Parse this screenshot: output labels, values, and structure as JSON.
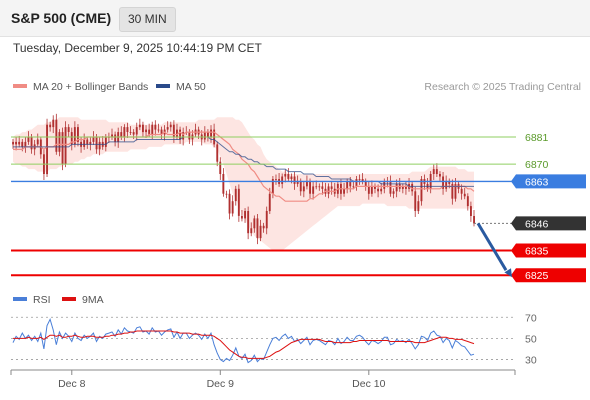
{
  "header": {
    "instrument": "S&P 500 (CME)",
    "timeframe": "30 MIN",
    "timestamp": "Tuesday, December 9, 2025 10:44:19 PM CET"
  },
  "colors": {
    "ma20": "#f08c84",
    "ma50": "#2a4a8a",
    "bollinger_fill": "#fcdcd8",
    "candle": "#b03030",
    "support": "#ee0000",
    "pivot": "#3a7de0",
    "resistance": "#8fcf60",
    "last_price": "#333333",
    "arrow": "#2a5aa0",
    "rsi": "#4a7fd8",
    "rsi_ma": "#dd1111"
  },
  "chart_data": [
    {
      "type": "candlestick",
      "legend": [
        "MA 20 + Bollinger Bands",
        "MA 50"
      ],
      "legend_placement": "top-left",
      "credit": "Research © 2025 Trading Central",
      "x_ticks": [
        "Dec 8",
        "Dec 9",
        "Dec 10"
      ],
      "ylim": [
        6819,
        6896
      ],
      "levels": [
        {
          "value": 6881,
          "label": "6881",
          "kind": "resistance"
        },
        {
          "value": 6870,
          "label": "6870",
          "kind": "resistance"
        },
        {
          "value": 6863,
          "label": "6863",
          "kind": "pivot"
        },
        {
          "value": 6846,
          "label": "6846",
          "kind": "last"
        },
        {
          "value": 6835,
          "label": "6835",
          "kind": "support"
        },
        {
          "value": 6825,
          "label": "6825",
          "kind": "support"
        }
      ],
      "close": [
        6879,
        6878,
        6879,
        6877,
        6879,
        6881,
        6876,
        6878,
        6880,
        6874,
        6866,
        6886,
        6885,
        6888,
        6875,
        6883,
        6870,
        6885,
        6883,
        6878,
        6885,
        6879,
        6877,
        6880,
        6878,
        6879,
        6881,
        6876,
        6879,
        6877,
        6881,
        6881,
        6882,
        6879,
        6883,
        6881,
        6885,
        6883,
        6883,
        6882,
        6885,
        6886,
        6883,
        6884,
        6882,
        6886,
        6884,
        6884,
        6882,
        6884,
        6885,
        6886,
        6881,
        6884,
        6880,
        6883,
        6883,
        6880,
        6882,
        6884,
        6882,
        6880,
        6883,
        6881,
        6884,
        6878,
        6871,
        6866,
        6858,
        6858,
        6850,
        6855,
        6860,
        6849,
        6848,
        6851,
        6842,
        6844,
        6848,
        6840,
        6845,
        6844,
        6851,
        6858,
        6864,
        6864,
        6862,
        6865,
        6866,
        6864,
        6865,
        6862,
        6863,
        6859,
        6861,
        6863,
        6858,
        6861,
        6861,
        6861,
        6860,
        6858,
        6861,
        6860,
        6858,
        6862,
        6858,
        6860,
        6863,
        6861,
        6861,
        6864,
        6864,
        6863,
        6861,
        6858,
        6861,
        6860,
        6859,
        6860,
        6863,
        6863,
        6858,
        6859,
        6862,
        6860,
        6861,
        6860,
        6862,
        6859,
        6851,
        6855,
        6864,
        6862,
        6860,
        6866,
        6868,
        6866,
        6865,
        6860,
        6863,
        6862,
        6856,
        6862,
        6860,
        6858,
        6857,
        6853,
        6849,
        6846
      ],
      "ma20": [
        6876,
        6876,
        6876,
        6876,
        6877,
        6877,
        6877,
        6877,
        6877,
        6877,
        6876,
        6877,
        6877,
        6877,
        6878,
        6878,
        6878,
        6878,
        6878,
        6879,
        6879,
        6880,
        6880,
        6880,
        6881,
        6881,
        6881,
        6881,
        6881,
        6881,
        6881,
        6881,
        6881,
        6881,
        6881,
        6881,
        6881,
        6881,
        6881,
        6881,
        6881,
        6881,
        6881,
        6881,
        6882,
        6882,
        6882,
        6882,
        6882,
        6883,
        6882,
        6882,
        6882,
        6882,
        6883,
        6882,
        6883,
        6883,
        6883,
        6883,
        6883,
        6883,
        6883,
        6883,
        6883,
        6883,
        6882,
        6881,
        6880,
        6879,
        6878,
        6876,
        6875,
        6874,
        6872,
        6871,
        6870,
        6868,
        6867,
        6865,
        6863,
        6861,
        6860,
        6859,
        6858,
        6857,
        6857,
        6856,
        6855,
        6855,
        6855,
        6855,
        6855,
        6855,
        6855,
        6855,
        6856,
        6856,
        6857,
        6858,
        6858,
        6859,
        6859,
        6859,
        6859,
        6860,
        6860,
        6860,
        6860,
        6860,
        6860,
        6861,
        6861,
        6861,
        6861,
        6861,
        6861,
        6861,
        6861,
        6861,
        6861,
        6861,
        6861,
        6861,
        6861,
        6861,
        6861,
        6861,
        6861,
        6860,
        6860,
        6860,
        6860,
        6860,
        6860,
        6860,
        6860,
        6860,
        6860,
        6861,
        6861,
        6861,
        6861,
        6861,
        6861,
        6861,
        6861,
        6860,
        6860,
        6859
      ],
      "bb_upper": [
        6881,
        6882,
        6882,
        6883,
        6883,
        6884,
        6884,
        6885,
        6886,
        6886,
        6886,
        6887,
        6887,
        6888,
        6888,
        6889,
        6889,
        6889,
        6889,
        6889,
        6889,
        6889,
        6888,
        6888,
        6888,
        6888,
        6888,
        6888,
        6888,
        6888,
        6888,
        6887,
        6887,
        6887,
        6887,
        6887,
        6887,
        6887,
        6886,
        6886,
        6886,
        6886,
        6886,
        6886,
        6886,
        6886,
        6886,
        6886,
        6886,
        6887,
        6887,
        6887,
        6887,
        6887,
        6887,
        6887,
        6887,
        6887,
        6887,
        6887,
        6888,
        6888,
        6888,
        6888,
        6888,
        6888,
        6889,
        6889,
        6889,
        6889,
        6889,
        6889,
        6888,
        6888,
        6887,
        6885,
        6883,
        6881,
        6880,
        6878,
        6877,
        6874,
        6872,
        6871,
        6870,
        6869,
        6868,
        6867,
        6867,
        6866,
        6866,
        6866,
        6866,
        6866,
        6866,
        6866,
        6866,
        6866,
        6866,
        6866,
        6866,
        6866,
        6866,
        6866,
        6866,
        6866,
        6866,
        6866,
        6866,
        6866,
        6866,
        6866,
        6866,
        6866,
        6866,
        6866,
        6866,
        6866,
        6866,
        6866,
        6866,
        6866,
        6866,
        6866,
        6866,
        6866,
        6866,
        6866,
        6866,
        6867,
        6867,
        6867,
        6867,
        6867,
        6868,
        6869,
        6869,
        6869,
        6869,
        6869,
        6869,
        6869,
        6869,
        6869,
        6868,
        6868,
        6868,
        6867,
        6867,
        6867
      ],
      "bb_lower": [
        6871,
        6870,
        6870,
        6869,
        6869,
        6868,
        6868,
        6868,
        6867,
        6867,
        6867,
        6867,
        6868,
        6868,
        6868,
        6869,
        6869,
        6870,
        6870,
        6870,
        6871,
        6871,
        6872,
        6872,
        6873,
        6873,
        6874,
        6874,
        6874,
        6874,
        6875,
        6875,
        6875,
        6875,
        6875,
        6875,
        6875,
        6875,
        6876,
        6876,
        6876,
        6876,
        6876,
        6876,
        6877,
        6877,
        6877,
        6877,
        6877,
        6878,
        6878,
        6878,
        6878,
        6878,
        6878,
        6878,
        6879,
        6879,
        6879,
        6879,
        6879,
        6879,
        6878,
        6878,
        6878,
        6877,
        6876,
        6873,
        6870,
        6866,
        6862,
        6858,
        6856,
        6853,
        6850,
        6848,
        6845,
        6843,
        6841,
        6840,
        6839,
        6838,
        6837,
        6836,
        6835,
        6835,
        6835,
        6835,
        6836,
        6837,
        6838,
        6839,
        6840,
        6841,
        6842,
        6843,
        6844,
        6845,
        6846,
        6847,
        6848,
        6849,
        6850,
        6851,
        6852,
        6853,
        6853,
        6853,
        6853,
        6853,
        6853,
        6853,
        6853,
        6854,
        6854,
        6854,
        6854,
        6854,
        6854,
        6854,
        6854,
        6853,
        6853,
        6853,
        6853,
        6853,
        6853,
        6853,
        6852,
        6852,
        6852,
        6852,
        6852,
        6852,
        6852,
        6852,
        6852,
        6852,
        6852,
        6852,
        6852,
        6852,
        6852,
        6852,
        6852,
        6852,
        6852,
        6852,
        6852,
        6852
      ],
      "ma50": [
        6877,
        6877,
        6877,
        6877,
        6877,
        6877,
        6877,
        6877,
        6877,
        6877,
        6877,
        6877,
        6877,
        6877,
        6877,
        6877,
        6877,
        6877,
        6877,
        6878,
        6878,
        6878,
        6878,
        6878,
        6878,
        6878,
        6878,
        6878,
        6878,
        6878,
        6878,
        6879,
        6879,
        6879,
        6879,
        6879,
        6879,
        6879,
        6879,
        6879,
        6880,
        6880,
        6880,
        6880,
        6880,
        6880,
        6880,
        6880,
        6880,
        6880,
        6880,
        6880,
        6880,
        6880,
        6880,
        6881,
        6881,
        6881,
        6881,
        6881,
        6881,
        6881,
        6881,
        6881,
        6880,
        6880,
        6879,
        6878,
        6877,
        6876,
        6875,
        6875,
        6874,
        6874,
        6873,
        6873,
        6872,
        6872,
        6871,
        6871,
        6870,
        6870,
        6869,
        6869,
        6869,
        6868,
        6868,
        6868,
        6868,
        6867,
        6867,
        6867,
        6867,
        6867,
        6866,
        6866,
        6866,
        6866,
        6865,
        6865,
        6865,
        6865,
        6865,
        6864,
        6864,
        6864,
        6864,
        6864,
        6864,
        6864,
        6863,
        6863,
        6863,
        6863,
        6863,
        6863,
        6863,
        6863,
        6863,
        6862,
        6862,
        6862,
        6862,
        6862,
        6862,
        6862,
        6862,
        6862,
        6861,
        6861,
        6861,
        6861,
        6861,
        6861,
        6861,
        6861,
        6861,
        6861,
        6861,
        6861,
        6861,
        6861,
        6861,
        6861,
        6861,
        6861,
        6861,
        6861,
        6861,
        6861
      ]
    },
    {
      "type": "line",
      "legend": [
        "RSI",
        "9MA"
      ],
      "legend_placement": "top-left",
      "ylim": [
        20,
        75
      ],
      "y_ticks": [
        30,
        50,
        70
      ],
      "rsi": [
        46,
        52,
        49,
        55,
        50,
        53,
        48,
        52,
        47,
        55,
        40,
        62,
        68,
        58,
        44,
        56,
        50,
        55,
        52,
        47,
        55,
        50,
        48,
        53,
        50,
        52,
        55,
        47,
        52,
        50,
        54,
        55,
        56,
        52,
        58,
        54,
        60,
        57,
        56,
        55,
        60,
        61,
        56,
        57,
        54,
        60,
        56,
        57,
        53,
        56,
        58,
        59,
        51,
        56,
        50,
        55,
        55,
        50,
        53,
        55,
        53,
        49,
        54,
        50,
        55,
        44,
        36,
        30,
        28,
        31,
        29,
        34,
        41,
        33,
        31,
        35,
        27,
        29,
        34,
        28,
        31,
        30,
        37,
        44,
        50,
        51,
        48,
        52,
        54,
        50,
        52,
        47,
        49,
        45,
        48,
        51,
        44,
        48,
        49,
        48,
        46,
        44,
        48,
        47,
        44,
        50,
        45,
        47,
        51,
        48,
        48,
        52,
        53,
        51,
        47,
        44,
        48,
        47,
        45,
        47,
        51,
        51,
        44,
        45,
        49,
        47,
        48,
        46,
        49,
        45,
        40,
        44,
        52,
        51,
        48,
        55,
        57,
        53,
        52,
        46,
        50,
        48,
        41,
        48,
        46,
        43,
        42,
        38,
        34,
        35
      ],
      "rsi_ma": [
        50,
        50,
        50,
        50,
        50,
        51,
        50,
        50,
        50,
        51,
        49,
        51,
        53,
        53,
        52,
        53,
        51,
        51,
        52,
        52,
        53,
        52,
        51,
        51,
        52,
        52,
        52,
        51,
        51,
        51,
        52,
        52,
        53,
        53,
        54,
        54,
        55,
        55,
        56,
        56,
        57,
        57,
        57,
        57,
        57,
        57,
        57,
        57,
        57,
        57,
        57,
        57,
        56,
        56,
        55,
        55,
        55,
        55,
        54,
        54,
        54,
        53,
        53,
        53,
        53,
        52,
        50,
        48,
        45,
        42,
        39,
        37,
        35,
        33,
        32,
        32,
        31,
        31,
        31,
        31,
        31,
        31,
        32,
        33,
        35,
        37,
        38,
        40,
        42,
        44,
        46,
        47,
        48,
        49,
        49,
        49,
        49,
        49,
        49,
        49,
        48,
        47,
        47,
        47,
        46,
        46,
        46,
        46,
        46,
        46,
        47,
        47,
        48,
        48,
        48,
        48,
        48,
        48,
        48,
        48,
        48,
        48,
        47,
        47,
        47,
        47,
        47,
        47,
        47,
        47,
        46,
        46,
        46,
        46,
        47,
        48,
        49,
        50,
        51,
        51,
        51,
        50,
        50,
        49,
        49,
        49,
        48,
        47,
        46,
        45
      ]
    }
  ]
}
